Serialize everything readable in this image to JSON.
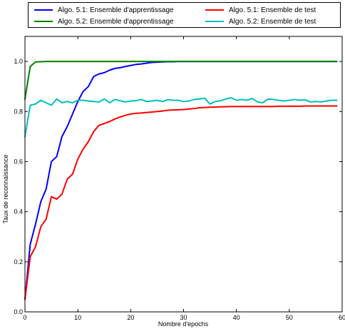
{
  "chart_data": {
    "type": "line",
    "title": "",
    "xlabel": "Nombre d'epochs",
    "ylabel": "Taux de reconnaissance",
    "xlim": [
      0,
      60
    ],
    "ylim": [
      0.0,
      1.1
    ],
    "xticks": [
      0,
      10,
      20,
      30,
      40,
      50,
      60
    ],
    "yticks": [
      0.0,
      0.2,
      0.4,
      0.6,
      0.8,
      1.0
    ],
    "xtick_labels": [
      "0",
      "10",
      "20",
      "30",
      "40",
      "50",
      "60"
    ],
    "ytick_labels": [
      "0.0",
      "0.2",
      "0.4",
      "0.6",
      "0.8",
      "1.0"
    ],
    "grid": false,
    "legend_position": "top",
    "series": [
      {
        "name": "Algo. 5.1: Ensemble d'apprentissage",
        "color": "#0000ff",
        "x": [
          0,
          1,
          2,
          3,
          4,
          5,
          6,
          7,
          8,
          9,
          10,
          11,
          12,
          13,
          14,
          15,
          16,
          17,
          18,
          19,
          20,
          21,
          22,
          23,
          24,
          25,
          26,
          27,
          28,
          29,
          30,
          31,
          32,
          33,
          34,
          35,
          36,
          37,
          38,
          39,
          40,
          41,
          42,
          43,
          44,
          45,
          46,
          47,
          48,
          49,
          50,
          51,
          52,
          53,
          54,
          55,
          56,
          57,
          58,
          59
        ],
        "values": [
          0.05,
          0.27,
          0.35,
          0.44,
          0.49,
          0.6,
          0.62,
          0.7,
          0.74,
          0.79,
          0.84,
          0.88,
          0.9,
          0.94,
          0.95,
          0.955,
          0.965,
          0.972,
          0.975,
          0.98,
          0.984,
          0.988,
          0.99,
          0.993,
          0.996,
          0.997,
          0.998,
          0.999,
          0.999,
          1.0,
          1.0,
          1.0,
          1.0,
          1.0,
          1.0,
          1.0,
          1.0,
          1.0,
          1.0,
          1.0,
          1.0,
          1.0,
          1.0,
          1.0,
          1.0,
          1.0,
          1.0,
          1.0,
          1.0,
          1.0,
          1.0,
          1.0,
          1.0,
          1.0,
          1.0,
          1.0,
          1.0,
          1.0,
          1.0,
          1.0
        ]
      },
      {
        "name": "Algo. 5.1: Ensemble de test",
        "color": "#ff0000",
        "x": [
          0,
          1,
          2,
          3,
          4,
          5,
          6,
          7,
          8,
          9,
          10,
          11,
          12,
          13,
          14,
          15,
          16,
          17,
          18,
          19,
          20,
          21,
          22,
          23,
          24,
          25,
          26,
          27,
          28,
          29,
          30,
          31,
          32,
          33,
          34,
          35,
          36,
          37,
          38,
          39,
          40,
          41,
          42,
          43,
          44,
          45,
          46,
          47,
          48,
          49,
          50,
          51,
          52,
          53,
          54,
          55,
          56,
          57,
          58,
          59
        ],
        "values": [
          0.05,
          0.22,
          0.26,
          0.34,
          0.37,
          0.46,
          0.45,
          0.47,
          0.53,
          0.55,
          0.61,
          0.65,
          0.68,
          0.72,
          0.745,
          0.752,
          0.76,
          0.77,
          0.778,
          0.785,
          0.79,
          0.793,
          0.794,
          0.796,
          0.798,
          0.8,
          0.802,
          0.805,
          0.806,
          0.807,
          0.808,
          0.81,
          0.812,
          0.815,
          0.816,
          0.817,
          0.818,
          0.819,
          0.819,
          0.82,
          0.82,
          0.82,
          0.82,
          0.82,
          0.82,
          0.82,
          0.82,
          0.82,
          0.821,
          0.821,
          0.821,
          0.821,
          0.821,
          0.822,
          0.822,
          0.822,
          0.822,
          0.822,
          0.822,
          0.822
        ]
      },
      {
        "name": "Algo. 5.2: Ensemble d'apprentissage",
        "color": "#007f00",
        "x": [
          0,
          1,
          2,
          3,
          4,
          5,
          6,
          7,
          8,
          9,
          10,
          11,
          12,
          13,
          14,
          15,
          16,
          17,
          18,
          19,
          20,
          21,
          22,
          23,
          24,
          25,
          26,
          27,
          28,
          29,
          30,
          31,
          32,
          33,
          34,
          35,
          36,
          37,
          38,
          39,
          40,
          41,
          42,
          43,
          44,
          45,
          46,
          47,
          48,
          49,
          50,
          51,
          52,
          53,
          54,
          55,
          56,
          57,
          58,
          59
        ],
        "values": [
          0.85,
          0.98,
          0.998,
          0.999,
          1.0,
          1.0,
          1.0,
          1.0,
          1.0,
          1.0,
          1.0,
          1.0,
          1.0,
          1.0,
          1.0,
          1.0,
          1.0,
          1.0,
          1.0,
          1.0,
          1.0,
          1.0,
          1.0,
          1.0,
          1.0,
          1.0,
          1.0,
          1.0,
          1.0,
          1.0,
          1.0,
          1.0,
          1.0,
          1.0,
          1.0,
          1.0,
          1.0,
          1.0,
          1.0,
          1.0,
          1.0,
          1.0,
          1.0,
          1.0,
          1.0,
          1.0,
          1.0,
          1.0,
          1.0,
          1.0,
          1.0,
          1.0,
          1.0,
          1.0,
          1.0,
          1.0,
          1.0,
          1.0,
          1.0,
          1.0
        ]
      },
      {
        "name": "Algo. 5.2: Ensemble de test",
        "color": "#00bfbf",
        "x": [
          0,
          1,
          2,
          3,
          4,
          5,
          6,
          7,
          8,
          9,
          10,
          11,
          12,
          13,
          14,
          15,
          16,
          17,
          18,
          19,
          20,
          21,
          22,
          23,
          24,
          25,
          26,
          27,
          28,
          29,
          30,
          31,
          32,
          33,
          34,
          35,
          36,
          37,
          38,
          39,
          40,
          41,
          42,
          43,
          44,
          45,
          46,
          47,
          48,
          49,
          50,
          51,
          52,
          53,
          54,
          55,
          56,
          57,
          58,
          59
        ],
        "values": [
          0.7,
          0.825,
          0.83,
          0.845,
          0.835,
          0.825,
          0.85,
          0.835,
          0.84,
          0.835,
          0.845,
          0.845,
          0.842,
          0.84,
          0.838,
          0.85,
          0.835,
          0.848,
          0.843,
          0.838,
          0.842,
          0.843,
          0.848,
          0.84,
          0.842,
          0.845,
          0.84,
          0.847,
          0.845,
          0.845,
          0.84,
          0.842,
          0.848,
          0.85,
          0.853,
          0.83,
          0.84,
          0.843,
          0.85,
          0.855,
          0.845,
          0.848,
          0.845,
          0.852,
          0.838,
          0.835,
          0.85,
          0.848,
          0.845,
          0.842,
          0.845,
          0.848,
          0.845,
          0.847,
          0.838,
          0.84,
          0.838,
          0.842,
          0.845,
          0.845
        ]
      }
    ]
  }
}
